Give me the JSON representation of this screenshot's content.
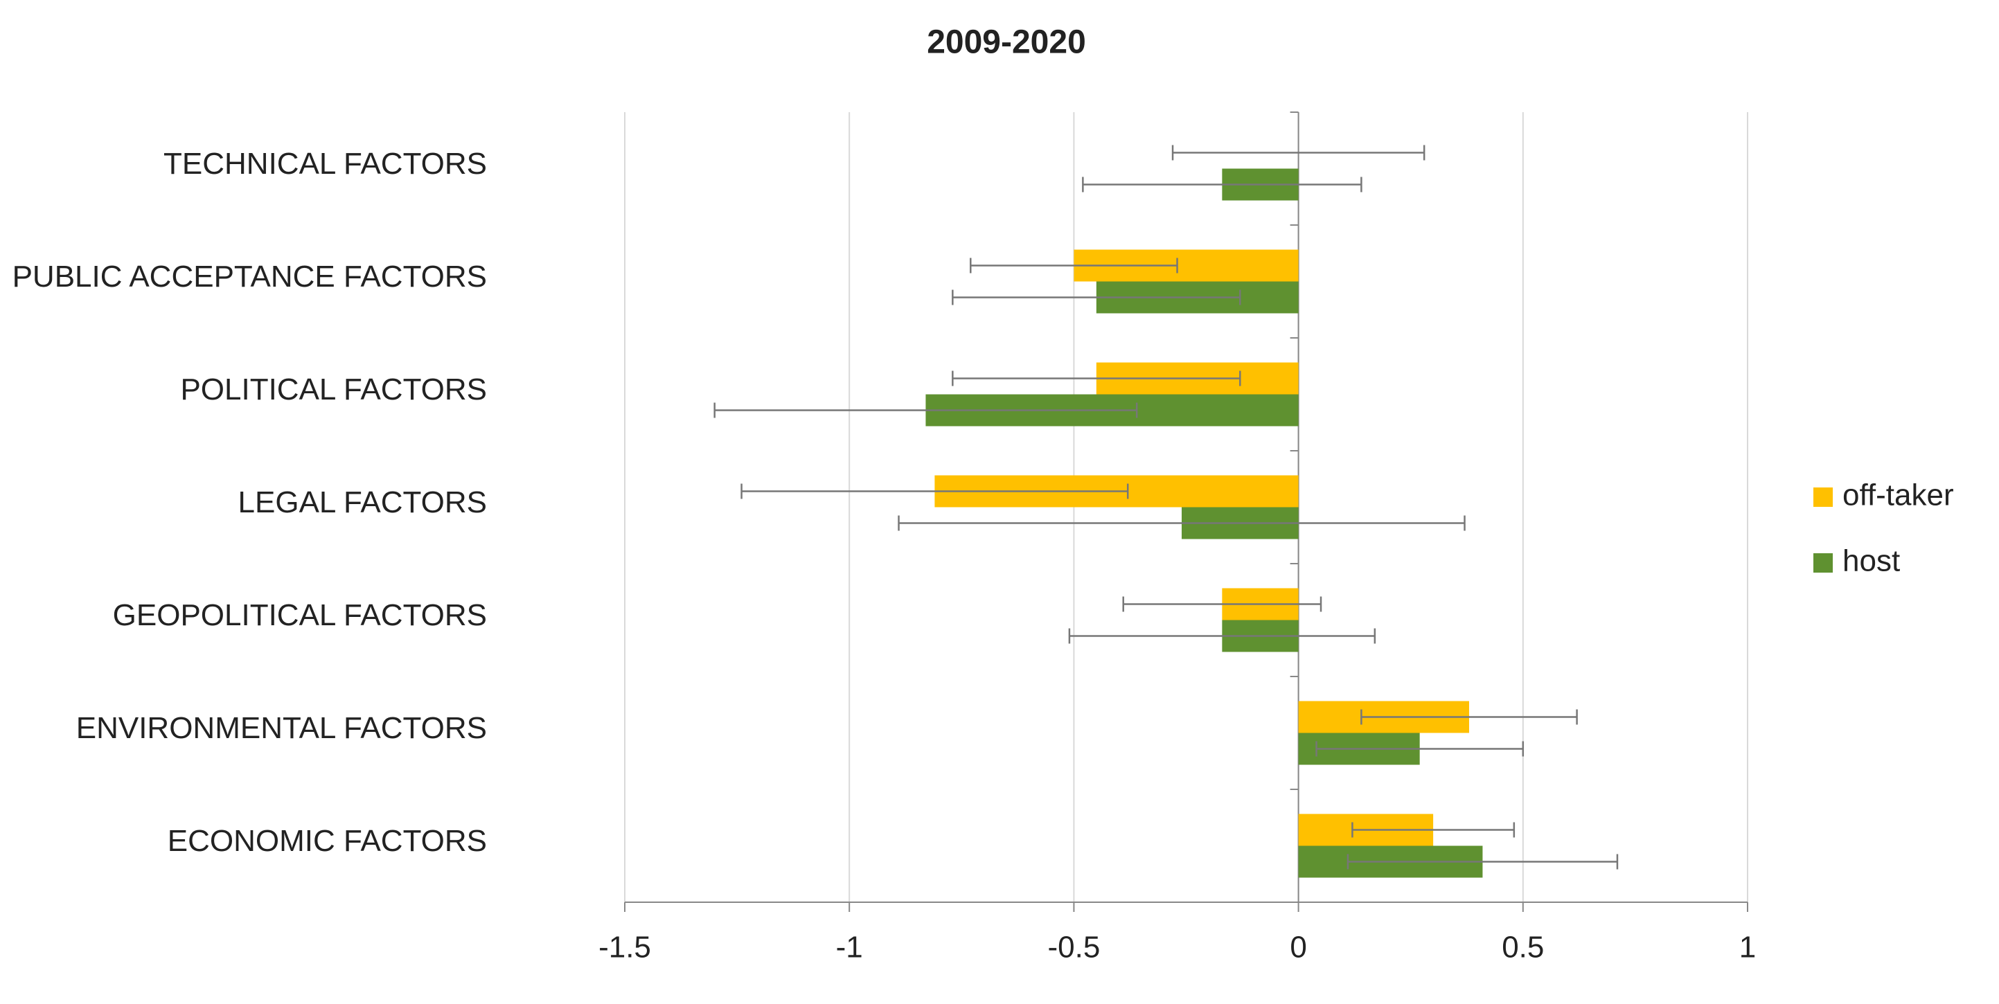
{
  "chart_data": {
    "type": "bar",
    "orientation": "horizontal",
    "title": "2009-2020",
    "categories": [
      "TECHNICAL FACTORS",
      "PUBLIC ACCEPTANCE FACTORS",
      "POLITICAL FACTORS",
      "LEGAL FACTORS",
      "GEOPOLITICAL FACTORS",
      "ENVIRONMENTAL FACTORS",
      "ECONOMIC FACTORS"
    ],
    "series": [
      {
        "name": "off-taker",
        "color": "#ffc000",
        "values": [
          0,
          -0.5,
          -0.45,
          -0.81,
          -0.17,
          0.38,
          0.3
        ],
        "errors": [
          0.28,
          0.23,
          0.32,
          0.43,
          0.22,
          0.24,
          0.18
        ]
      },
      {
        "name": "host",
        "color": "#5f9130",
        "values": [
          -0.17,
          -0.45,
          -0.83,
          -0.26,
          -0.17,
          0.27,
          0.41
        ],
        "errors": [
          0.31,
          0.32,
          0.47,
          0.63,
          0.34,
          0.23,
          0.3
        ]
      }
    ],
    "xlim": [
      -1.5,
      1
    ],
    "xticks": [
      -1.5,
      -1,
      -0.5,
      0,
      0.5,
      1
    ],
    "grid": true,
    "legend": "right"
  }
}
